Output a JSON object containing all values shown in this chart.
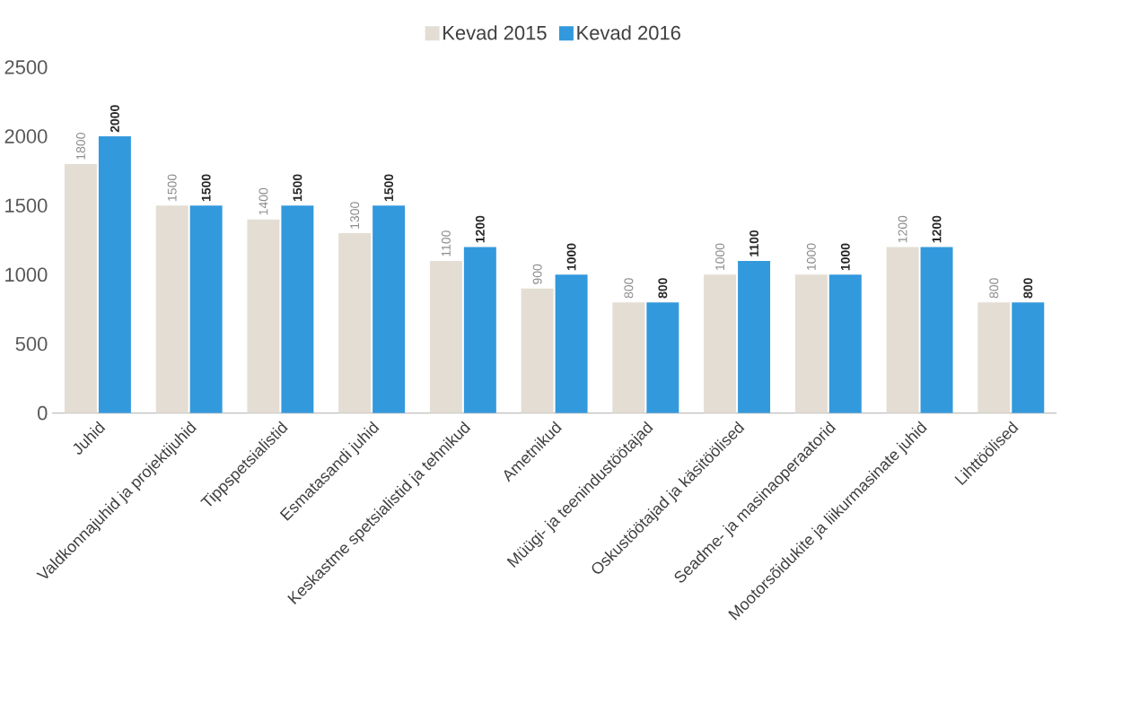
{
  "chart_data": {
    "type": "bar",
    "categories": [
      "Juhid",
      "Valdkonnajuhid ja projektijuhid",
      "Tippspetsialistid",
      "Esmatasandi juhid",
      "Keskastme spetsialistid ja tehnikud",
      "Ametnikud",
      "Müügi- ja teenindustöötajad",
      "Oskustöötajad ja käsitöölised",
      "Seadme- ja masinaoperaatorid",
      "Mootorsõidukite ja liikurmasinate juhid",
      "Lihttöölised"
    ],
    "series": [
      {
        "name": "Kevad 2015",
        "color": "#e3ddd3",
        "values": [
          1800,
          1500,
          1400,
          1300,
          1100,
          900,
          800,
          1000,
          1000,
          1200,
          800
        ]
      },
      {
        "name": "Kevad 2016",
        "color": "#3399dd",
        "values": [
          2000,
          1500,
          1500,
          1500,
          1200,
          1000,
          800,
          1100,
          1000,
          1200,
          800
        ]
      }
    ],
    "ylim": [
      0,
      2500
    ],
    "yticks": [
      0,
      500,
      1000,
      1500,
      2000,
      2500
    ],
    "legend": "top",
    "data_labels": true
  }
}
